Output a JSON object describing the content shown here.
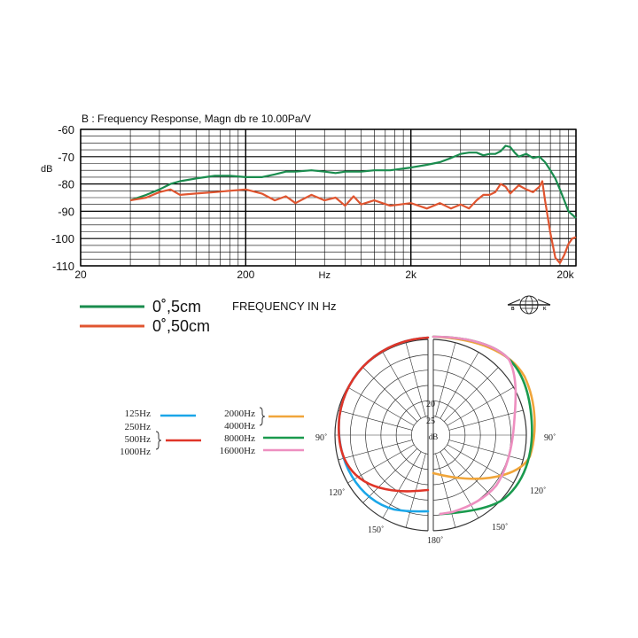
{
  "chart_data": [
    {
      "type": "line",
      "title": "B : Frequency Response, Magn db re 10.00Pa/V",
      "ylabel": "dB",
      "xlabel": "FREQUENCY IN Hz",
      "x_scale": "log",
      "xlim": [
        20,
        20000
      ],
      "ylim": [
        -110,
        -60
      ],
      "y_ticks": [
        "-60",
        "-70",
        "-80",
        "-90",
        "-100",
        "-110"
      ],
      "y_tick_values": [
        -60,
        -70,
        -80,
        -90,
        -100,
        -110
      ],
      "x_ticks": [
        "20",
        "200",
        "Hz",
        "2k",
        "20k"
      ],
      "x_tick_values": [
        20,
        200,
        600,
        2000,
        20000
      ],
      "grid": true,
      "legend_position": "bottom-left",
      "series": [
        {
          "name": "0˚,5cm",
          "color": "#1a8c4e",
          "x": [
            40,
            50,
            60,
            70,
            80,
            100,
            130,
            160,
            200,
            250,
            300,
            350,
            400,
            500,
            600,
            700,
            800,
            1000,
            1200,
            1500,
            2000,
            2500,
            3000,
            3500,
            4000,
            4500,
            5000,
            5500,
            6000,
            6500,
            7000,
            7500,
            8000,
            8500,
            9000,
            10000,
            11000,
            12000,
            13000,
            14000,
            15000,
            16000,
            17000,
            18000,
            20000
          ],
          "y": [
            -86,
            -84,
            -82,
            -80,
            -79,
            -78,
            -77,
            -77,
            -77.5,
            -77.5,
            -76.5,
            -75.5,
            -75.5,
            -75,
            -75.5,
            -76,
            -75.5,
            -75.5,
            -75,
            -75,
            -74,
            -73,
            -72,
            -70.5,
            -69,
            -68.5,
            -68.5,
            -69.5,
            -69,
            -69,
            -68,
            -66,
            -66.5,
            -68.5,
            -70,
            -69,
            -70.5,
            -70,
            -72,
            -75,
            -78,
            -82,
            -86,
            -90,
            -92.5
          ]
        },
        {
          "name": "0˚,50cm",
          "color": "#e05530",
          "x": [
            40,
            50,
            60,
            70,
            80,
            100,
            130,
            160,
            200,
            250,
            300,
            350,
            400,
            500,
            600,
            700,
            800,
            900,
            1000,
            1200,
            1500,
            2000,
            2500,
            3000,
            3500,
            4000,
            4500,
            5000,
            5500,
            6000,
            6500,
            7000,
            7500,
            8000,
            9000,
            10000,
            11000,
            12000,
            12500,
            13000,
            14000,
            15000,
            16000,
            17000,
            18000,
            19000,
            20000
          ],
          "y": [
            -86,
            -85,
            -83,
            -82,
            -84,
            -83.5,
            -83,
            -82.5,
            -82,
            -83.5,
            -86,
            -84.5,
            -87,
            -84,
            -86,
            -85,
            -88,
            -84.5,
            -87.5,
            -86,
            -88,
            -87,
            -89,
            -87,
            -89,
            -87.5,
            -89,
            -86,
            -84,
            -84,
            -83,
            -80,
            -81,
            -83.5,
            -80.5,
            -82,
            -83,
            -81,
            -79,
            -86,
            -98,
            -107,
            -109,
            -106,
            -102,
            -100,
            -99.5
          ]
        }
      ]
    },
    {
      "type": "polar",
      "title": "",
      "ring_labels": [
        "20",
        "25",
        "dB"
      ],
      "angle_labels": [
        "90˚",
        "120˚",
        "150˚",
        "180˚",
        "90˚",
        "120˚",
        "150˚",
        "180˚"
      ],
      "series": [
        {
          "name": "125Hz",
          "color": "#1aa6e8",
          "group": "125Hz, 250Hz"
        },
        {
          "name": "250Hz",
          "color": "#1aa6e8",
          "group": "125Hz, 250Hz"
        },
        {
          "name": "500Hz",
          "color": "#e03528",
          "group": "500Hz, 1000Hz"
        },
        {
          "name": "1000Hz",
          "color": "#e03528",
          "group": "500Hz, 1000Hz"
        },
        {
          "name": "2000Hz",
          "color": "#f0a53a",
          "group": "2000Hz, 4000Hz"
        },
        {
          "name": "4000Hz",
          "color": "#f0a53a",
          "group": "2000Hz, 4000Hz"
        },
        {
          "name": "8000Hz",
          "color": "#1a9a4e"
        },
        {
          "name": "16000Hz",
          "color": "#ee8fc0"
        }
      ]
    }
  ],
  "legend": {
    "line1": "0˚,5cm",
    "line2": "0˚,50cm",
    "xlabel": "FREQUENCY IN Hz",
    "color1": "#1a8c4e",
    "color2": "#e05530"
  },
  "polar_legend": {
    "hz125": "125Hz",
    "hz250": "250Hz",
    "hz500": "500Hz",
    "hz1000": "1000Hz",
    "hz2000": "2000Hz",
    "hz4000": "4000Hz",
    "hz8000": "8000Hz",
    "hz16000": "16000Hz",
    "colors": {
      "blue": "#1aa6e8",
      "red": "#e03528",
      "orange": "#f0a53a",
      "green": "#1a9a4e",
      "pink": "#ee8fc0"
    }
  },
  "logo": {
    "letter_left": "B",
    "letter_right": "K"
  }
}
